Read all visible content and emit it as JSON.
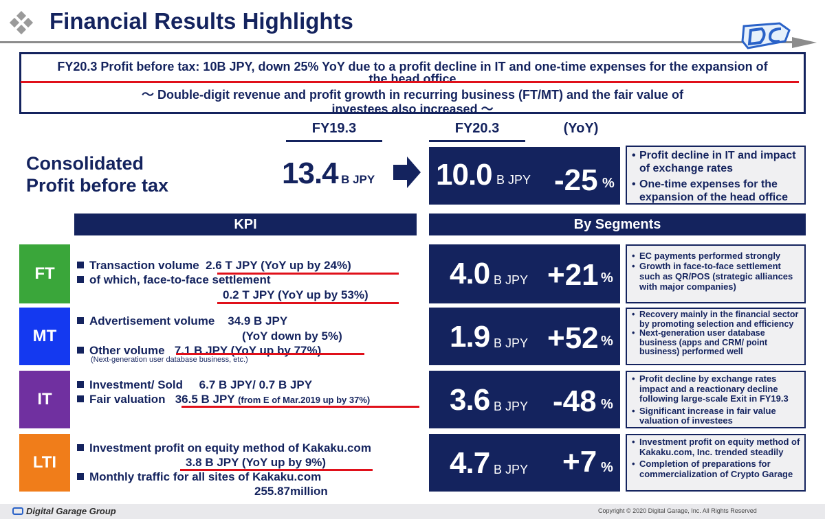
{
  "header": {
    "title": "Financial Results Highlights"
  },
  "summary": {
    "line1": "FY20.3 Profit before tax: 10B JPY, down 25% YoY due to a profit decline in IT and one-time expenses for the expansion of the head office",
    "line2": "～ Double-digit revenue and profit growth in recurring business (FT/MT) and the fair value of investees also increased ～"
  },
  "columns": {
    "prev": "FY19.3",
    "curr": "FY20.3",
    "yoy": "(YoY)"
  },
  "consolidated": {
    "label_line1": "Consolidated",
    "label_line2": "Profit before tax",
    "prev_value": "13.4",
    "prev_unit": "B JPY",
    "curr_value": "10.0",
    "curr_unit": "B JPY",
    "yoy_value": "-25",
    "yoy_unit": "%",
    "notes": [
      "Profit decline in IT and impact of exchange rates",
      "One-time expenses for the expansion of the head office"
    ]
  },
  "sections": {
    "kpi": "KPI",
    "segments": "By Segments"
  },
  "segments": {
    "ft": {
      "tag": "FT",
      "color": "#3aa63a",
      "kpi1_label": "Transaction volume",
      "kpi1_value": "2.6 T JPY (YoY up by 24%)",
      "kpi2_label": "of which, face-to-face settlement",
      "kpi2_value": "0.2 T JPY (YoY up by 53%)",
      "value": "4.0",
      "unit": "B JPY",
      "yoy": "+21",
      "yoy_unit": "%",
      "notes": [
        "EC payments performed strongly",
        "Growth in face-to-face settlement such as QR/POS (strategic alliances with major companies)"
      ]
    },
    "mt": {
      "tag": "MT",
      "color": "#1439f0",
      "kpi1_label": "Advertisement volume",
      "kpi1_value": "34.9 B JPY",
      "kpi1_value2": "(YoY down by 5%)",
      "kpi2_label": "Other volume",
      "kpi2_value": "7.1 B JPY (YoY up by 77%)",
      "kpi2_note": "(Next-generation user database business, etc.)",
      "value": "1.9",
      "unit": "B JPY",
      "yoy": "+52",
      "yoy_unit": "%",
      "notes": [
        "Recovery mainly in the financial sector by promoting selection and efficiency",
        "Next-generation user database business (apps and CRM/ point business) performed well"
      ]
    },
    "it": {
      "tag": "IT",
      "color": "#7030a0",
      "kpi1_label": "Investment/ Sold",
      "kpi1_value": "6.7 B JPY/ 0.7 B JPY",
      "kpi2_label": "Fair valuation",
      "kpi2_value": "36.5 B JPY",
      "kpi2_value_small": "(from E of Mar.2019 up by 37%)",
      "value": "3.6",
      "unit": "B JPY",
      "yoy": "-48",
      "yoy_unit": "%",
      "notes": [
        "Profit decline by exchange rates impact and a reactionary decline following large-scale Exit in FY19.3",
        "Significant increase in fair value valuation of investees"
      ]
    },
    "lti": {
      "tag": "LTI",
      "color": "#f07d1a",
      "kpi1_label": "Investment profit on equity method of Kakaku.com",
      "kpi1_value": "3.8 B JPY (YoY up by 9%)",
      "kpi2_label": "Monthly traffic for all sites of Kakaku.com",
      "kpi2_value": "255.87million",
      "value": "4.7",
      "unit": "B JPY",
      "yoy": "+7",
      "yoy_unit": "%",
      "notes": [
        "Investment profit on equity method of Kakaku.com, Inc. trended steadily",
        "Completion of preparations for commercialization of Crypto Garage"
      ]
    }
  },
  "footer": {
    "company": "Digital Garage Group",
    "copyright": "Copyright © 2020 Digital Garage, Inc. All Rights Reserved"
  },
  "colors": {
    "navy": "#14235e",
    "accent_red": "#e0101a",
    "grey_box": "#f0f0f2"
  }
}
